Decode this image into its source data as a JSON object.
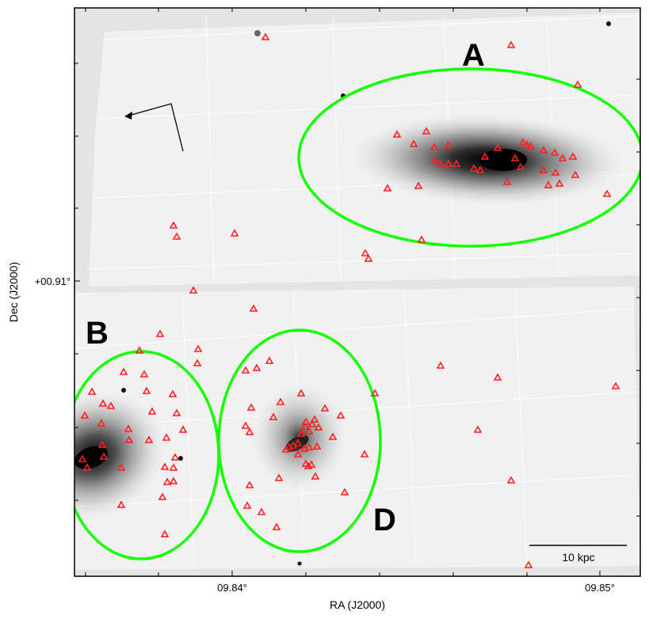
{
  "axes": {
    "xlabel": "RA (J2000)",
    "ylabel": "Dec (J2000)",
    "x_ticks": [
      "09.84°",
      "09.85°"
    ],
    "y_ticks": [
      "+00.91°"
    ]
  },
  "regions": [
    {
      "label": "A"
    },
    {
      "label": "B"
    },
    {
      "label": "D"
    }
  ],
  "scalebar": {
    "label": "10 kpc"
  },
  "colors": {
    "ellipse": "#14ff00",
    "marker": "#ff2020",
    "frame": "#000000",
    "chip_fill": "#f1f1f1",
    "background": "#e4e4e4"
  },
  "marker_shape": "open-triangle",
  "compass_icon": "north-east-arrows"
}
